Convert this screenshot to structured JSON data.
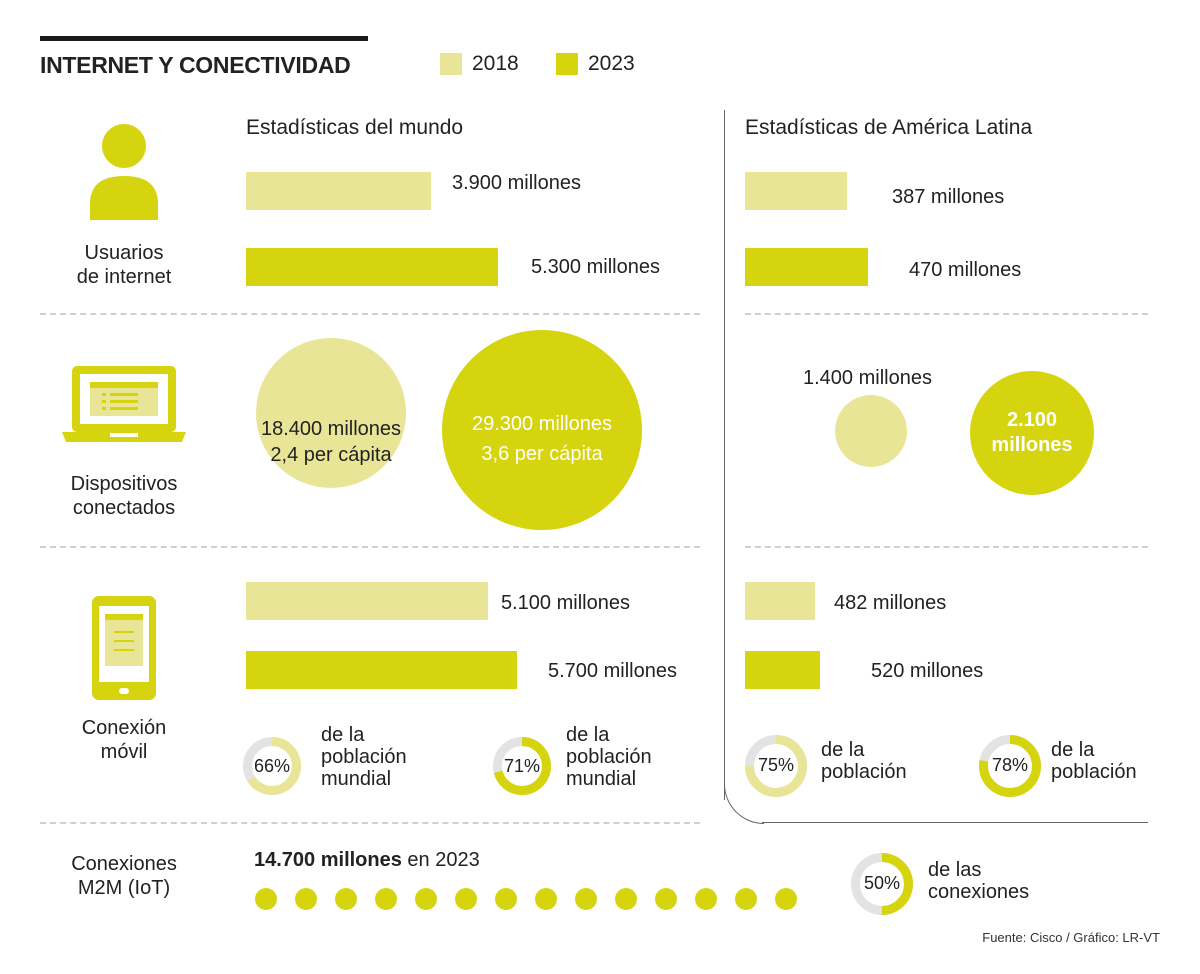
{
  "header": {
    "title": "INTERNET Y CONECTIVIDAD"
  },
  "colors": {
    "c2018": "#e8e596",
    "c2023": "#d5d40f",
    "donut_track": "#e3e3e3"
  },
  "legend": [
    {
      "label": "2018",
      "color": "#e8e596"
    },
    {
      "label": "2023",
      "color": "#d5d40f"
    }
  ],
  "sections": {
    "world": "Estadísticas del mundo",
    "latam": "Estadísticas de América Latina"
  },
  "categories": {
    "users": [
      "Usuarios",
      "de internet"
    ],
    "devices": [
      "Dispositivos",
      "conectados"
    ],
    "mobile": [
      "Conexión",
      "móvil"
    ],
    "iot": [
      "Conexiones",
      "M2M (IoT)"
    ]
  },
  "icons": {
    "users": "user-icon",
    "devices": "laptop-icon",
    "mobile": "tablet-icon"
  },
  "chart_data": [
    {
      "type": "bar",
      "title": "Usuarios de internet - Estadísticas del mundo",
      "unit": "millones",
      "series": [
        {
          "name": "2018",
          "values": [
            3900
          ],
          "label": "3.900 millones"
        },
        {
          "name": "2023",
          "values": [
            5300
          ],
          "label": "5.300 millones"
        }
      ]
    },
    {
      "type": "bar",
      "title": "Usuarios de internet - Estadísticas de América Latina",
      "unit": "millones",
      "series": [
        {
          "name": "2018",
          "values": [
            387
          ],
          "label": "387 millones"
        },
        {
          "name": "2023",
          "values": [
            470
          ],
          "label": "470 millones"
        }
      ]
    },
    {
      "type": "bubble",
      "title": "Dispositivos conectados - Estadísticas del mundo",
      "unit": "millones",
      "series": [
        {
          "name": "2018",
          "values": [
            18400
          ],
          "lines": [
            "18.400 millones",
            "2,4 per cápita"
          ]
        },
        {
          "name": "2023",
          "values": [
            29300
          ],
          "lines": [
            "29.300 millones",
            "3,6 per cápita"
          ]
        }
      ]
    },
    {
      "type": "bubble",
      "title": "Dispositivos conectados - Estadísticas de América Latina",
      "unit": "millones",
      "series": [
        {
          "name": "2018",
          "values": [
            1400
          ],
          "lines": [
            "1.400 millones"
          ]
        },
        {
          "name": "2023",
          "values": [
            2100
          ],
          "lines": [
            "2.100",
            "millones"
          ]
        }
      ]
    },
    {
      "type": "bar",
      "title": "Conexión móvil - Estadísticas del mundo",
      "unit": "millones",
      "series": [
        {
          "name": "2018",
          "values": [
            5100
          ],
          "label": "5.100 millones"
        },
        {
          "name": "2023",
          "values": [
            5700
          ],
          "label": "5.700 millones"
        }
      ]
    },
    {
      "type": "bar",
      "title": "Conexión móvil - Estadísticas de América Latina",
      "unit": "millones",
      "series": [
        {
          "name": "2018",
          "values": [
            482
          ],
          "label": "482 millones"
        },
        {
          "name": "2023",
          "values": [
            520
          ],
          "label": "520 millones"
        }
      ]
    },
    {
      "type": "donut",
      "title": "Conexión móvil - % población",
      "items": [
        {
          "region": "mundo",
          "year": "2018",
          "value": 66,
          "label": "66%",
          "text": [
            "de la",
            "población",
            "mundial"
          ]
        },
        {
          "region": "mundo",
          "year": "2023",
          "value": 71,
          "label": "71%",
          "text": [
            "de la",
            "población",
            "mundial"
          ]
        },
        {
          "region": "América Latina",
          "year": "2018",
          "value": 75,
          "label": "75%",
          "text": [
            "de la",
            "población"
          ]
        },
        {
          "region": "América Latina",
          "year": "2023",
          "value": 78,
          "label": "78%",
          "text": [
            "de la",
            "población"
          ]
        }
      ]
    },
    {
      "type": "dots",
      "title": "Conexiones M2M (IoT)",
      "bold": "14.700 millones",
      "rest": " en 2023",
      "dots": 14,
      "donut": {
        "value": 50,
        "label": "50%",
        "text": [
          "de las",
          "conexiones"
        ]
      }
    }
  ],
  "source": "Fuente: Cisco / Gráfico: LR-VT"
}
